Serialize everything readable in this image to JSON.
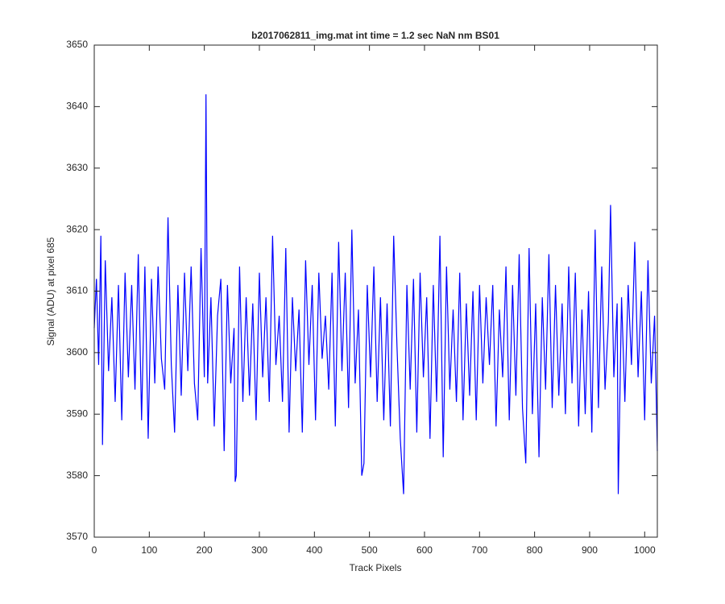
{
  "chart_data": {
    "type": "line",
    "title": "b2017062811_img.mat int time = 1.2 sec  NaN nm BS01",
    "x_label": "Track Pixels",
    "y_label": "Signal (ADU) at pixel 685",
    "xlim": [
      0,
      1023
    ],
    "ylim": [
      3570,
      3650
    ],
    "xticks": [
      0,
      100,
      200,
      300,
      400,
      500,
      600,
      700,
      800,
      900,
      1000
    ],
    "yticks": [
      3570,
      3580,
      3590,
      3600,
      3610,
      3620,
      3630,
      3640,
      3650
    ],
    "grid": false,
    "x": [
      0,
      4,
      8,
      12,
      15,
      20,
      26,
      32,
      38,
      44,
      50,
      56,
      62,
      68,
      74,
      80,
      86,
      92,
      98,
      104,
      110,
      116,
      122,
      128,
      134,
      140,
      146,
      152,
      158,
      164,
      170,
      176,
      182,
      188,
      194,
      200,
      203,
      206,
      212,
      218,
      224,
      230,
      236,
      242,
      248,
      254,
      256,
      258,
      264,
      270,
      276,
      282,
      288,
      294,
      300,
      306,
      312,
      318,
      324,
      330,
      336,
      342,
      348,
      354,
      360,
      366,
      372,
      378,
      384,
      390,
      396,
      402,
      408,
      414,
      420,
      426,
      432,
      438,
      444,
      450,
      456,
      462,
      468,
      474,
      480,
      486,
      490,
      496,
      502,
      508,
      514,
      520,
      526,
      532,
      538,
      544,
      550,
      556,
      562,
      568,
      574,
      580,
      586,
      592,
      598,
      604,
      610,
      616,
      622,
      628,
      634,
      640,
      646,
      652,
      658,
      664,
      670,
      676,
      682,
      688,
      694,
      700,
      706,
      712,
      718,
      724,
      730,
      736,
      742,
      748,
      754,
      760,
      766,
      772,
      778,
      784,
      790,
      796,
      802,
      808,
      814,
      820,
      826,
      832,
      838,
      844,
      850,
      856,
      862,
      868,
      874,
      880,
      886,
      892,
      898,
      904,
      910,
      916,
      922,
      928,
      934,
      938,
      944,
      950,
      952,
      958,
      964,
      970,
      976,
      982,
      988,
      994,
      1000,
      1006,
      1012,
      1018,
      1023
    ],
    "series": [
      {
        "color": "#0000ff",
        "values": [
          3604,
          3612,
          3598,
          3619,
          3585,
          3615,
          3597,
          3609,
          3592,
          3611,
          3589,
          3613,
          3596,
          3611,
          3594,
          3616,
          3589,
          3614,
          3586,
          3612,
          3595,
          3614,
          3599,
          3594,
          3622,
          3598,
          3587,
          3611,
          3593,
          3613,
          3597,
          3614,
          3595,
          3589,
          3617,
          3596,
          3642,
          3595,
          3609,
          3588,
          3606,
          3612,
          3584,
          3611,
          3595,
          3604,
          3579,
          3580,
          3614,
          3592,
          3609,
          3593,
          3608,
          3589,
          3613,
          3596,
          3609,
          3592,
          3619,
          3598,
          3606,
          3592,
          3617,
          3587,
          3609,
          3597,
          3607,
          3587,
          3615,
          3598,
          3611,
          3589,
          3613,
          3599,
          3606,
          3594,
          3613,
          3588,
          3618,
          3597,
          3613,
          3591,
          3620,
          3595,
          3607,
          3580,
          3582,
          3611,
          3596,
          3614,
          3592,
          3609,
          3589,
          3608,
          3588,
          3619,
          3601,
          3586,
          3577,
          3611,
          3594,
          3612,
          3587,
          3613,
          3596,
          3609,
          3586,
          3611,
          3592,
          3619,
          3583,
          3614,
          3594,
          3607,
          3592,
          3613,
          3589,
          3608,
          3593,
          3610,
          3589,
          3611,
          3595,
          3609,
          3598,
          3611,
          3588,
          3607,
          3596,
          3614,
          3589,
          3611,
          3593,
          3616,
          3591,
          3582,
          3617,
          3590,
          3608,
          3583,
          3609,
          3594,
          3616,
          3591,
          3611,
          3593,
          3608,
          3590,
          3614,
          3595,
          3613,
          3588,
          3607,
          3590,
          3610,
          3587,
          3620,
          3591,
          3614,
          3594,
          3605,
          3624,
          3596,
          3608,
          3577,
          3609,
          3592,
          3611,
          3598,
          3618,
          3596,
          3610,
          3589,
          3615,
          3595,
          3606,
          3584
        ]
      }
    ]
  }
}
